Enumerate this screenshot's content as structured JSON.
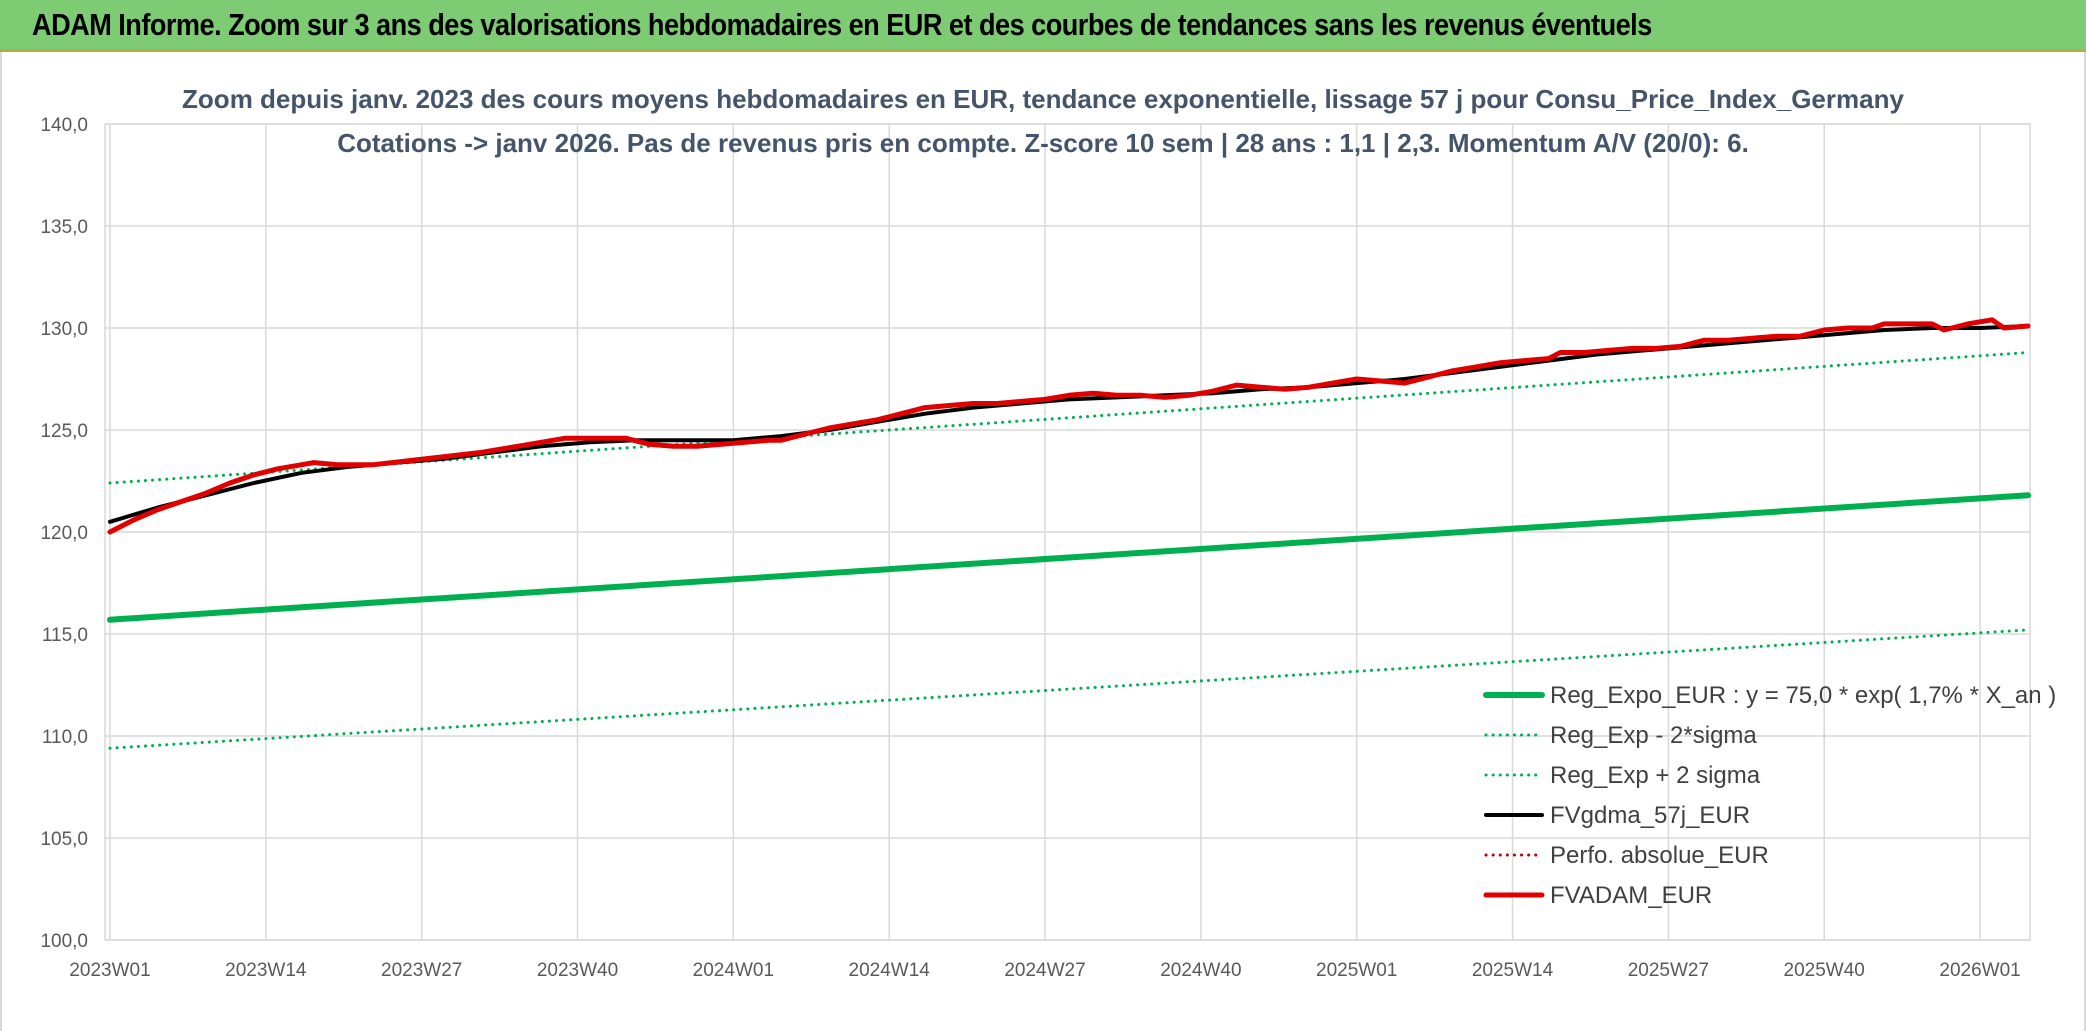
{
  "header": {
    "title": "ADAM Informe. Zoom sur 3 ans des valorisations hebdomadaires en EUR et des courbes de tendances sans les revenus éventuels"
  },
  "chart_data": {
    "type": "line",
    "title_line1": "Zoom depuis janv. 2023 des cours moyens hebdomadaires en EUR, tendance exponentielle, lissage 57 j pour Consu_Price_Index_Germany",
    "title_line2": "Cotations -> janv 2026. Pas de revenus pris en compte. Z-score 10 sem | 28 ans : 1,1  | 2,3. Momentum A/V (20/0): 6.",
    "ylim": [
      100,
      140
    ],
    "yticks": [
      "100,0",
      "105,0",
      "110,0",
      "115,0",
      "120,0",
      "125,0",
      "130,0",
      "135,0",
      "140,0"
    ],
    "x_range": [
      0,
      160
    ],
    "xticks": [
      {
        "label": "2023W01",
        "x": 0
      },
      {
        "label": "2023W14",
        "x": 13
      },
      {
        "label": "2023W27",
        "x": 26
      },
      {
        "label": "2023W40",
        "x": 39
      },
      {
        "label": "2024W01",
        "x": 52
      },
      {
        "label": "2024W14",
        "x": 65
      },
      {
        "label": "2024W27",
        "x": 78
      },
      {
        "label": "2024W40",
        "x": 91
      },
      {
        "label": "2025W01",
        "x": 104
      },
      {
        "label": "2025W14",
        "x": 117
      },
      {
        "label": "2025W27",
        "x": 130
      },
      {
        "label": "2025W40",
        "x": 143
      },
      {
        "label": "2026W01",
        "x": 156
      }
    ],
    "colors": {
      "trend": "#00b050",
      "fvgdma": "#000000",
      "fvadam": "#e00000",
      "perfo": "#c00000",
      "grid": "#d9d9d9"
    },
    "series": [
      {
        "name": "Reg_Expo_EUR : y = 75,0 * exp( 1,7% *  X_an )",
        "style": "solid",
        "color": "#00b050",
        "width": 6,
        "points": [
          [
            0,
            115.7
          ],
          [
            160,
            121.8
          ]
        ]
      },
      {
        "name": "Reg_Exp - 2*sigma",
        "style": "dotted",
        "color": "#00b050",
        "width": 3,
        "points": [
          [
            0,
            109.4
          ],
          [
            160,
            115.2
          ]
        ]
      },
      {
        "name": "Reg_Exp + 2 sigma",
        "style": "dotted",
        "color": "#00b050",
        "width": 3,
        "points": [
          [
            0,
            122.4
          ],
          [
            160,
            128.8
          ]
        ]
      },
      {
        "name": "FVgdma_57j_EUR",
        "style": "solid",
        "color": "#000000",
        "width": 4,
        "points": [
          [
            0,
            120.5
          ],
          [
            4,
            121.2
          ],
          [
            8,
            121.8
          ],
          [
            12,
            122.4
          ],
          [
            16,
            122.9
          ],
          [
            20,
            123.2
          ],
          [
            24,
            123.4
          ],
          [
            28,
            123.6
          ],
          [
            32,
            123.9
          ],
          [
            36,
            124.2
          ],
          [
            40,
            124.4
          ],
          [
            44,
            124.5
          ],
          [
            48,
            124.5
          ],
          [
            52,
            124.5
          ],
          [
            56,
            124.7
          ],
          [
            60,
            125.0
          ],
          [
            64,
            125.4
          ],
          [
            68,
            125.8
          ],
          [
            72,
            126.1
          ],
          [
            76,
            126.3
          ],
          [
            80,
            126.5
          ],
          [
            84,
            126.6
          ],
          [
            88,
            126.7
          ],
          [
            92,
            126.8
          ],
          [
            96,
            127.0
          ],
          [
            100,
            127.1
          ],
          [
            104,
            127.3
          ],
          [
            108,
            127.5
          ],
          [
            112,
            127.8
          ],
          [
            116,
            128.1
          ],
          [
            120,
            128.4
          ],
          [
            124,
            128.7
          ],
          [
            128,
            128.9
          ],
          [
            132,
            129.1
          ],
          [
            136,
            129.3
          ],
          [
            140,
            129.5
          ],
          [
            144,
            129.7
          ],
          [
            148,
            129.9
          ],
          [
            152,
            130.0
          ],
          [
            156,
            130.0
          ],
          [
            160,
            130.1
          ]
        ]
      },
      {
        "name": "Perfo. absolue_EUR",
        "style": "dotted",
        "color": "#c00000",
        "width": 3,
        "points": []
      },
      {
        "name": "FVADAM_EUR",
        "style": "solid",
        "color": "#e00000",
        "width": 5,
        "points": [
          [
            0,
            120.0
          ],
          [
            2,
            120.6
          ],
          [
            4,
            121.1
          ],
          [
            6,
            121.5
          ],
          [
            8,
            121.9
          ],
          [
            10,
            122.4
          ],
          [
            12,
            122.8
          ],
          [
            14,
            123.1
          ],
          [
            16,
            123.3
          ],
          [
            17,
            123.4
          ],
          [
            19,
            123.3
          ],
          [
            22,
            123.3
          ],
          [
            25,
            123.5
          ],
          [
            28,
            123.7
          ],
          [
            31,
            123.9
          ],
          [
            34,
            124.2
          ],
          [
            37,
            124.5
          ],
          [
            38,
            124.6
          ],
          [
            41,
            124.6
          ],
          [
            43,
            124.6
          ],
          [
            45,
            124.3
          ],
          [
            47,
            124.2
          ],
          [
            49,
            124.2
          ],
          [
            51,
            124.3
          ],
          [
            53,
            124.4
          ],
          [
            55,
            124.5
          ],
          [
            56,
            124.5
          ],
          [
            58,
            124.8
          ],
          [
            60,
            125.1
          ],
          [
            62,
            125.3
          ],
          [
            64,
            125.5
          ],
          [
            66,
            125.8
          ],
          [
            68,
            126.1
          ],
          [
            70,
            126.2
          ],
          [
            72,
            126.3
          ],
          [
            74,
            126.3
          ],
          [
            76,
            126.4
          ],
          [
            78,
            126.5
          ],
          [
            80,
            126.7
          ],
          [
            82,
            126.8
          ],
          [
            84,
            126.7
          ],
          [
            86,
            126.7
          ],
          [
            88,
            126.6
          ],
          [
            90,
            126.7
          ],
          [
            92,
            126.9
          ],
          [
            94,
            127.2
          ],
          [
            96,
            127.1
          ],
          [
            98,
            127.0
          ],
          [
            100,
            127.1
          ],
          [
            102,
            127.3
          ],
          [
            104,
            127.5
          ],
          [
            106,
            127.4
          ],
          [
            108,
            127.3
          ],
          [
            110,
            127.6
          ],
          [
            112,
            127.9
          ],
          [
            114,
            128.1
          ],
          [
            116,
            128.3
          ],
          [
            118,
            128.4
          ],
          [
            120,
            128.5
          ],
          [
            121,
            128.8
          ],
          [
            123,
            128.8
          ],
          [
            125,
            128.9
          ],
          [
            127,
            129.0
          ],
          [
            129,
            129.0
          ],
          [
            131,
            129.1
          ],
          [
            133,
            129.4
          ],
          [
            135,
            129.4
          ],
          [
            137,
            129.5
          ],
          [
            139,
            129.6
          ],
          [
            141,
            129.6
          ],
          [
            143,
            129.9
          ],
          [
            145,
            130.0
          ],
          [
            147,
            130.0
          ],
          [
            148,
            130.2
          ],
          [
            152,
            130.2
          ],
          [
            153,
            129.9
          ],
          [
            155,
            130.2
          ],
          [
            157,
            130.4
          ],
          [
            158,
            130.0
          ],
          [
            160,
            130.1
          ]
        ]
      }
    ]
  }
}
